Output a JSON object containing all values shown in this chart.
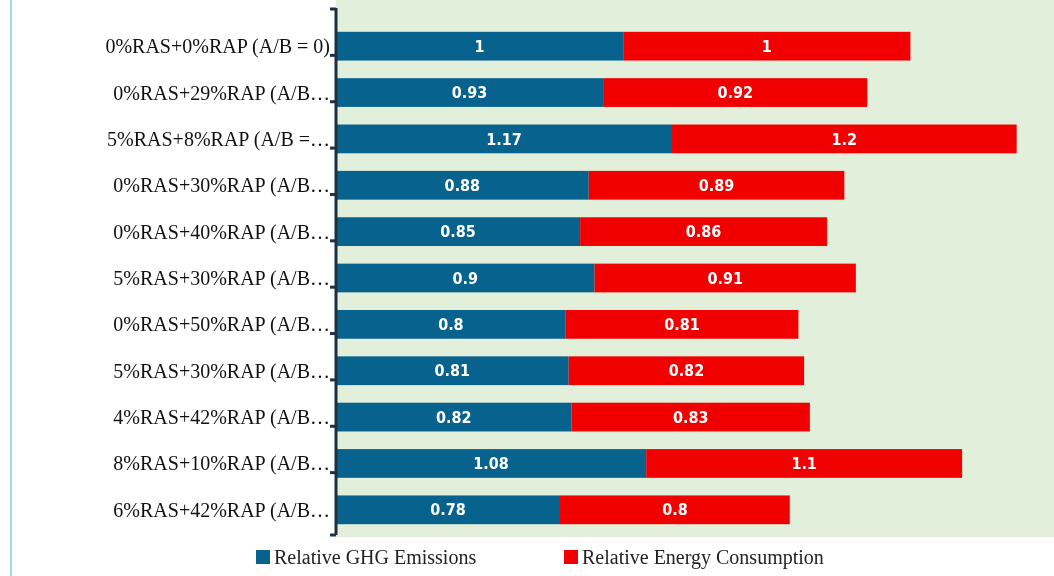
{
  "chart_data": {
    "type": "bar",
    "orientation": "horizontal",
    "stacked": true,
    "data_labels": true,
    "legend": "bottom",
    "xlim": [
      0,
      2.5
    ],
    "categories": [
      "0%RAS+0%RAP (A/B = 0)",
      "0%RAS+29%RAP (A/B…",
      "5%RAS+8%RAP (A/B =…",
      "0%RAS+30%RAP (A/B…",
      "0%RAS+40%RAP (A/B…",
      "5%RAS+30%RAP (A/B…",
      "0%RAS+50%RAP (A/B…",
      "5%RAS+30%RAP (A/B…",
      "4%RAS+42%RAP (A/B…",
      "8%RAS+10%RAP (A/B…",
      "6%RAS+42%RAP (A/B…"
    ],
    "series": [
      {
        "name": "Relative GHG Emissions",
        "color": "#07628e",
        "values": [
          1,
          0.93,
          1.17,
          0.88,
          0.85,
          0.9,
          0.8,
          0.81,
          0.82,
          1.08,
          0.78
        ]
      },
      {
        "name": "Relative Energy Consumption",
        "color": "#f00000",
        "values": [
          1,
          0.92,
          1.2,
          0.89,
          0.86,
          0.91,
          0.81,
          0.82,
          0.83,
          1.1,
          0.8
        ]
      }
    ]
  }
}
